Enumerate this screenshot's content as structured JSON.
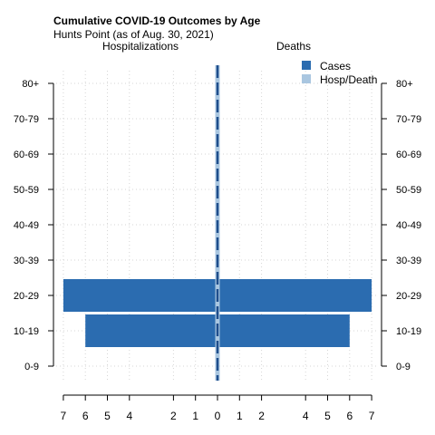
{
  "chart_data": {
    "type": "bar",
    "orientation": "horizontal",
    "layout": "back-to-back pyramid",
    "title": "Cumulative COVID-19 Outcomes by Age",
    "subtitle": "Hunts Point (as of Aug. 30, 2021)",
    "left_header": "Hospitalizations",
    "right_header": "Deaths",
    "categories": [
      "0-9",
      "10-19",
      "20-29",
      "30-39",
      "40-49",
      "50-59",
      "60-69",
      "70-79",
      "80+"
    ],
    "x_ticks_left": [
      7,
      6,
      5,
      4,
      2,
      1,
      0
    ],
    "x_ticks_right": [
      1,
      2,
      4,
      5,
      6,
      7
    ],
    "xlim": [
      -7,
      7
    ],
    "grid": true,
    "legend_position": "top-right",
    "series": [
      {
        "name": "Cases",
        "color": "#2b6cb0",
        "left_values": [
          0,
          6,
          7,
          0,
          0,
          0,
          0,
          0,
          0
        ],
        "right_values": [
          0,
          6,
          7,
          0,
          0,
          0,
          0,
          0,
          0
        ]
      },
      {
        "name": "Hosp/Death",
        "color": "#a9c6e0",
        "left_values": [
          0,
          0,
          0,
          0,
          0,
          0,
          0,
          0,
          0
        ],
        "right_values": [
          0,
          0,
          0,
          0,
          0,
          0,
          0,
          0,
          0
        ]
      }
    ],
    "center_line_color": "#1f4e8c"
  }
}
